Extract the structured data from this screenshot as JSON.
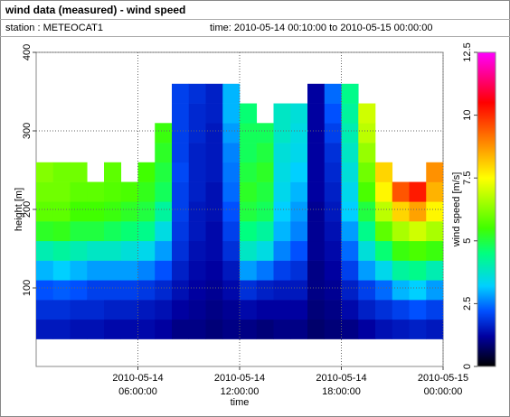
{
  "header": {
    "title": "wind data (measured) - wind speed",
    "station": "station : METEOCAT1",
    "time": "time: 2010-05-14 00:10:00 to 2010-05-15 00:00:00"
  },
  "chart_data": {
    "type": "heatmap",
    "xlabel": "time",
    "ylabel": "height [m]",
    "zlabel": "wind speed [m/s]",
    "xlim": [
      "2010-05-14 00:00:00",
      "2010-05-15 00:00:00"
    ],
    "xticks": [
      {
        "value": "2010-05-14 06:00:00",
        "label": [
          "2010-05-14",
          "06:00:00"
        ]
      },
      {
        "value": "2010-05-14 12:00:00",
        "label": [
          "2010-05-14",
          "12:00:00"
        ]
      },
      {
        "value": "2010-05-14 18:00:00",
        "label": [
          "2010-05-14",
          "18:00:00"
        ]
      },
      {
        "value": "2010-05-15 00:00:00",
        "label": [
          "2010-05-15",
          "00:00:00"
        ]
      }
    ],
    "ylim": [
      0,
      400
    ],
    "yticks": [
      100,
      200,
      300,
      400
    ],
    "zlim": [
      0,
      12.5
    ],
    "zticks": [
      0,
      2.5,
      5,
      7.5,
      10,
      12.5
    ],
    "grid": true,
    "colorscale": [
      [
        0,
        "#000000"
      ],
      [
        1.2,
        "#0000a0"
      ],
      [
        2.2,
        "#0050ff"
      ],
      [
        3.2,
        "#00d0ff"
      ],
      [
        4.5,
        "#00ff80"
      ],
      [
        5.5,
        "#40ff00"
      ],
      [
        7.5,
        "#ffff00"
      ],
      [
        9,
        "#ff8000"
      ],
      [
        10.5,
        "#ff0000"
      ],
      [
        12.5,
        "#ff00ff"
      ]
    ],
    "x_bins": [
      "2010-05-14 00:00:00",
      "2010-05-14 01:00:00",
      "2010-05-14 02:00:00",
      "2010-05-14 03:00:00",
      "2010-05-14 04:00:00",
      "2010-05-14 05:00:00",
      "2010-05-14 06:00:00",
      "2010-05-14 07:00:00",
      "2010-05-14 08:00:00",
      "2010-05-14 09:00:00",
      "2010-05-14 10:00:00",
      "2010-05-14 11:00:00",
      "2010-05-14 12:00:00",
      "2010-05-14 13:00:00",
      "2010-05-14 14:00:00",
      "2010-05-14 15:00:00",
      "2010-05-14 16:00:00",
      "2010-05-14 17:00:00",
      "2010-05-14 18:00:00",
      "2010-05-14 19:00:00",
      "2010-05-14 20:00:00",
      "2010-05-14 21:00:00",
      "2010-05-14 22:00:00",
      "2010-05-14 23:00:00",
      "2010-05-15 00:00:00"
    ],
    "y_bins": [
      35,
      60,
      85,
      110,
      135,
      160,
      185,
      210,
      235,
      260,
      285,
      310,
      335,
      360
    ],
    "values": [
      [
        1.5,
        1.8,
        2.2,
        3.0,
        4.0,
        5.2,
        5.8,
        6.0,
        6.2,
        null,
        null,
        null,
        null
      ],
      [
        1.5,
        1.8,
        2.3,
        3.2,
        4.2,
        5.3,
        5.8,
        6.0,
        6.0,
        null,
        null,
        null,
        null
      ],
      [
        1.4,
        1.7,
        2.2,
        3.0,
        4.0,
        5.0,
        5.5,
        5.8,
        6.0,
        null,
        null,
        null,
        null
      ],
      [
        1.4,
        1.7,
        2.0,
        2.8,
        3.8,
        5.0,
        5.5,
        5.8,
        null,
        null,
        null,
        null,
        null
      ],
      [
        1.3,
        1.6,
        2.0,
        2.8,
        3.8,
        4.8,
        5.4,
        5.7,
        5.8,
        null,
        null,
        null,
        null
      ],
      [
        1.3,
        1.6,
        2.0,
        2.8,
        3.6,
        4.6,
        5.2,
        5.6,
        null,
        null,
        null,
        null,
        null
      ],
      [
        1.3,
        1.5,
        1.9,
        2.6,
        3.4,
        4.4,
        5.0,
        5.3,
        5.5,
        null,
        null,
        null,
        null
      ],
      [
        1.2,
        1.4,
        1.7,
        2.2,
        2.8,
        3.5,
        4.2,
        4.8,
        5.0,
        5.2,
        5.4,
        null,
        null
      ],
      [
        1.0,
        1.2,
        1.4,
        1.6,
        1.8,
        1.9,
        2.0,
        2.0,
        2.1,
        2.0,
        2.0,
        2.0,
        2.0
      ],
      [
        1.0,
        1.1,
        1.2,
        1.3,
        1.4,
        1.5,
        1.5,
        1.6,
        1.6,
        1.6,
        1.7,
        1.7,
        1.8
      ],
      [
        0.9,
        1.0,
        1.1,
        1.2,
        1.3,
        1.3,
        1.4,
        1.4,
        1.5,
        1.5,
        1.5,
        1.6,
        1.6
      ],
      [
        1.0,
        1.1,
        1.3,
        1.5,
        1.8,
        2.0,
        2.2,
        2.4,
        2.5,
        2.6,
        2.8,
        3.0,
        3.0
      ],
      [
        1.0,
        1.3,
        1.8,
        2.8,
        3.8,
        4.5,
        5.0,
        5.2,
        5.0,
        4.8,
        4.8,
        4.6,
        null
      ],
      [
        0.9,
        1.2,
        1.6,
        2.5,
        3.5,
        4.2,
        4.8,
        5.0,
        5.2,
        5.0,
        4.8,
        null,
        null
      ],
      [
        1.0,
        1.2,
        1.5,
        2.0,
        2.6,
        3.0,
        3.2,
        3.4,
        3.5,
        3.6,
        3.8,
        3.8,
        null
      ],
      [
        1.0,
        1.2,
        1.5,
        1.8,
        2.2,
        2.6,
        2.8,
        3.0,
        3.2,
        3.4,
        3.5,
        3.6,
        null
      ],
      [
        0.8,
        0.9,
        1.0,
        1.0,
        1.1,
        1.1,
        1.1,
        1.2,
        1.2,
        1.2,
        1.2,
        1.2,
        1.2
      ],
      [
        0.9,
        1.0,
        1.1,
        1.2,
        1.3,
        1.4,
        1.5,
        1.6,
        1.7,
        1.8,
        2.0,
        2.2,
        2.4
      ],
      [
        1.0,
        1.3,
        1.6,
        2.0,
        2.4,
        2.8,
        3.2,
        3.4,
        3.6,
        3.8,
        4.0,
        4.2,
        4.4
      ],
      [
        1.2,
        1.6,
        2.0,
        2.8,
        3.6,
        4.4,
        5.0,
        5.6,
        6.0,
        6.4,
        6.8,
        7.0,
        null
      ],
      [
        1.4,
        1.8,
        2.4,
        3.4,
        4.6,
        5.8,
        6.8,
        7.6,
        8.0,
        null,
        null,
        null,
        null
      ],
      [
        1.5,
        2.0,
        3.0,
        4.2,
        5.4,
        6.6,
        8.0,
        9.5,
        null,
        null,
        null,
        null,
        null
      ],
      [
        1.6,
        2.2,
        3.2,
        4.4,
        5.6,
        7.0,
        8.6,
        10.2,
        null,
        null,
        null,
        null,
        null
      ],
      [
        1.5,
        2.0,
        2.8,
        4.0,
        5.4,
        6.6,
        7.6,
        8.4,
        8.8,
        null,
        null,
        null,
        null
      ]
    ]
  }
}
